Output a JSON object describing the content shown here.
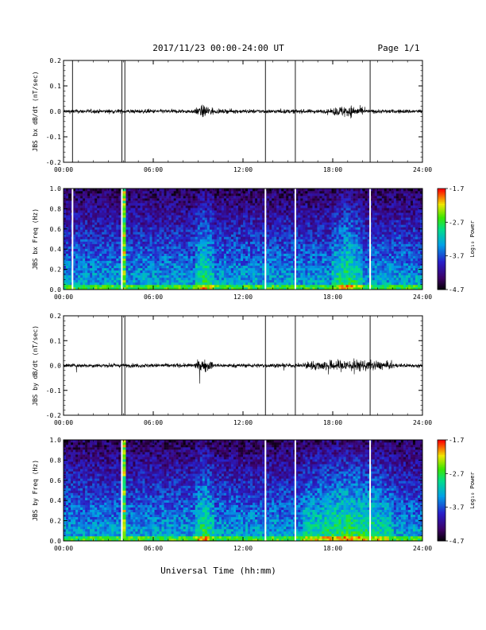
{
  "header": {
    "title": "2017/11/23  00:00-24:00 UT",
    "page": "Page 1/1"
  },
  "xlabel": "Universal Time (hh:mm)",
  "colorbar": {
    "label": "Log₁₀ Power",
    "ticks": [
      "-1.7",
      "-2.7",
      "-3.7",
      "-4.7"
    ],
    "range": [
      -4.7,
      -1.7
    ]
  },
  "chart_data": [
    {
      "type": "line",
      "ylabel": "JBS bx dB/dt (nT/sec)",
      "x_range": [
        "00:00",
        "24:00"
      ],
      "x_ticks": [
        "00:00",
        "06:00",
        "12:00",
        "18:00",
        "24:00"
      ],
      "ylim": [
        -0.2,
        0.2
      ],
      "y_ticks": [
        "0.2",
        "0.1",
        "0.0",
        "-0.1",
        "-0.2"
      ],
      "spikes_hours": [
        0.6,
        3.9,
        4.1,
        13.5,
        15.5,
        20.5
      ],
      "active_intervals_hours": [
        [
          8.8,
          10.0
        ],
        [
          18.0,
          20.0
        ]
      ]
    },
    {
      "type": "heatmap",
      "ylabel": "JBS bx Freq (Hz)",
      "x_ticks": [
        "00:00",
        "06:00",
        "12:00",
        "18:00",
        "24:00"
      ],
      "ylim": [
        0.0,
        1.0
      ],
      "y_ticks": [
        "1.0",
        "0.8",
        "0.6",
        "0.4",
        "0.2",
        "0.0"
      ],
      "colorscale_range": [
        -4.7,
        -1.7
      ]
    },
    {
      "type": "line",
      "ylabel": "JBS by dB/dt (nT/sec)",
      "x_range": [
        "00:00",
        "24:00"
      ],
      "x_ticks": [
        "00:00",
        "06:00",
        "12:00",
        "18:00",
        "24:00"
      ],
      "ylim": [
        -0.2,
        0.2
      ],
      "y_ticks": [
        "0.2",
        "0.1",
        "0.0",
        "-0.1",
        "-0.2"
      ],
      "spikes_hours": [
        3.9,
        4.1,
        13.5,
        15.5,
        20.5
      ],
      "active_intervals_hours": [
        [
          8.8,
          10.0
        ],
        [
          16.0,
          22.0
        ]
      ]
    },
    {
      "type": "heatmap",
      "ylabel": "JBS by Freq (Hz)",
      "x_ticks": [
        "00:00",
        "06:00",
        "12:00",
        "18:00",
        "24:00"
      ],
      "ylim": [
        0.0,
        1.0
      ],
      "y_ticks": [
        "1.0",
        "0.8",
        "0.6",
        "0.4",
        "0.2",
        "0.0"
      ],
      "colorscale_range": [
        -4.7,
        -1.7
      ]
    }
  ]
}
